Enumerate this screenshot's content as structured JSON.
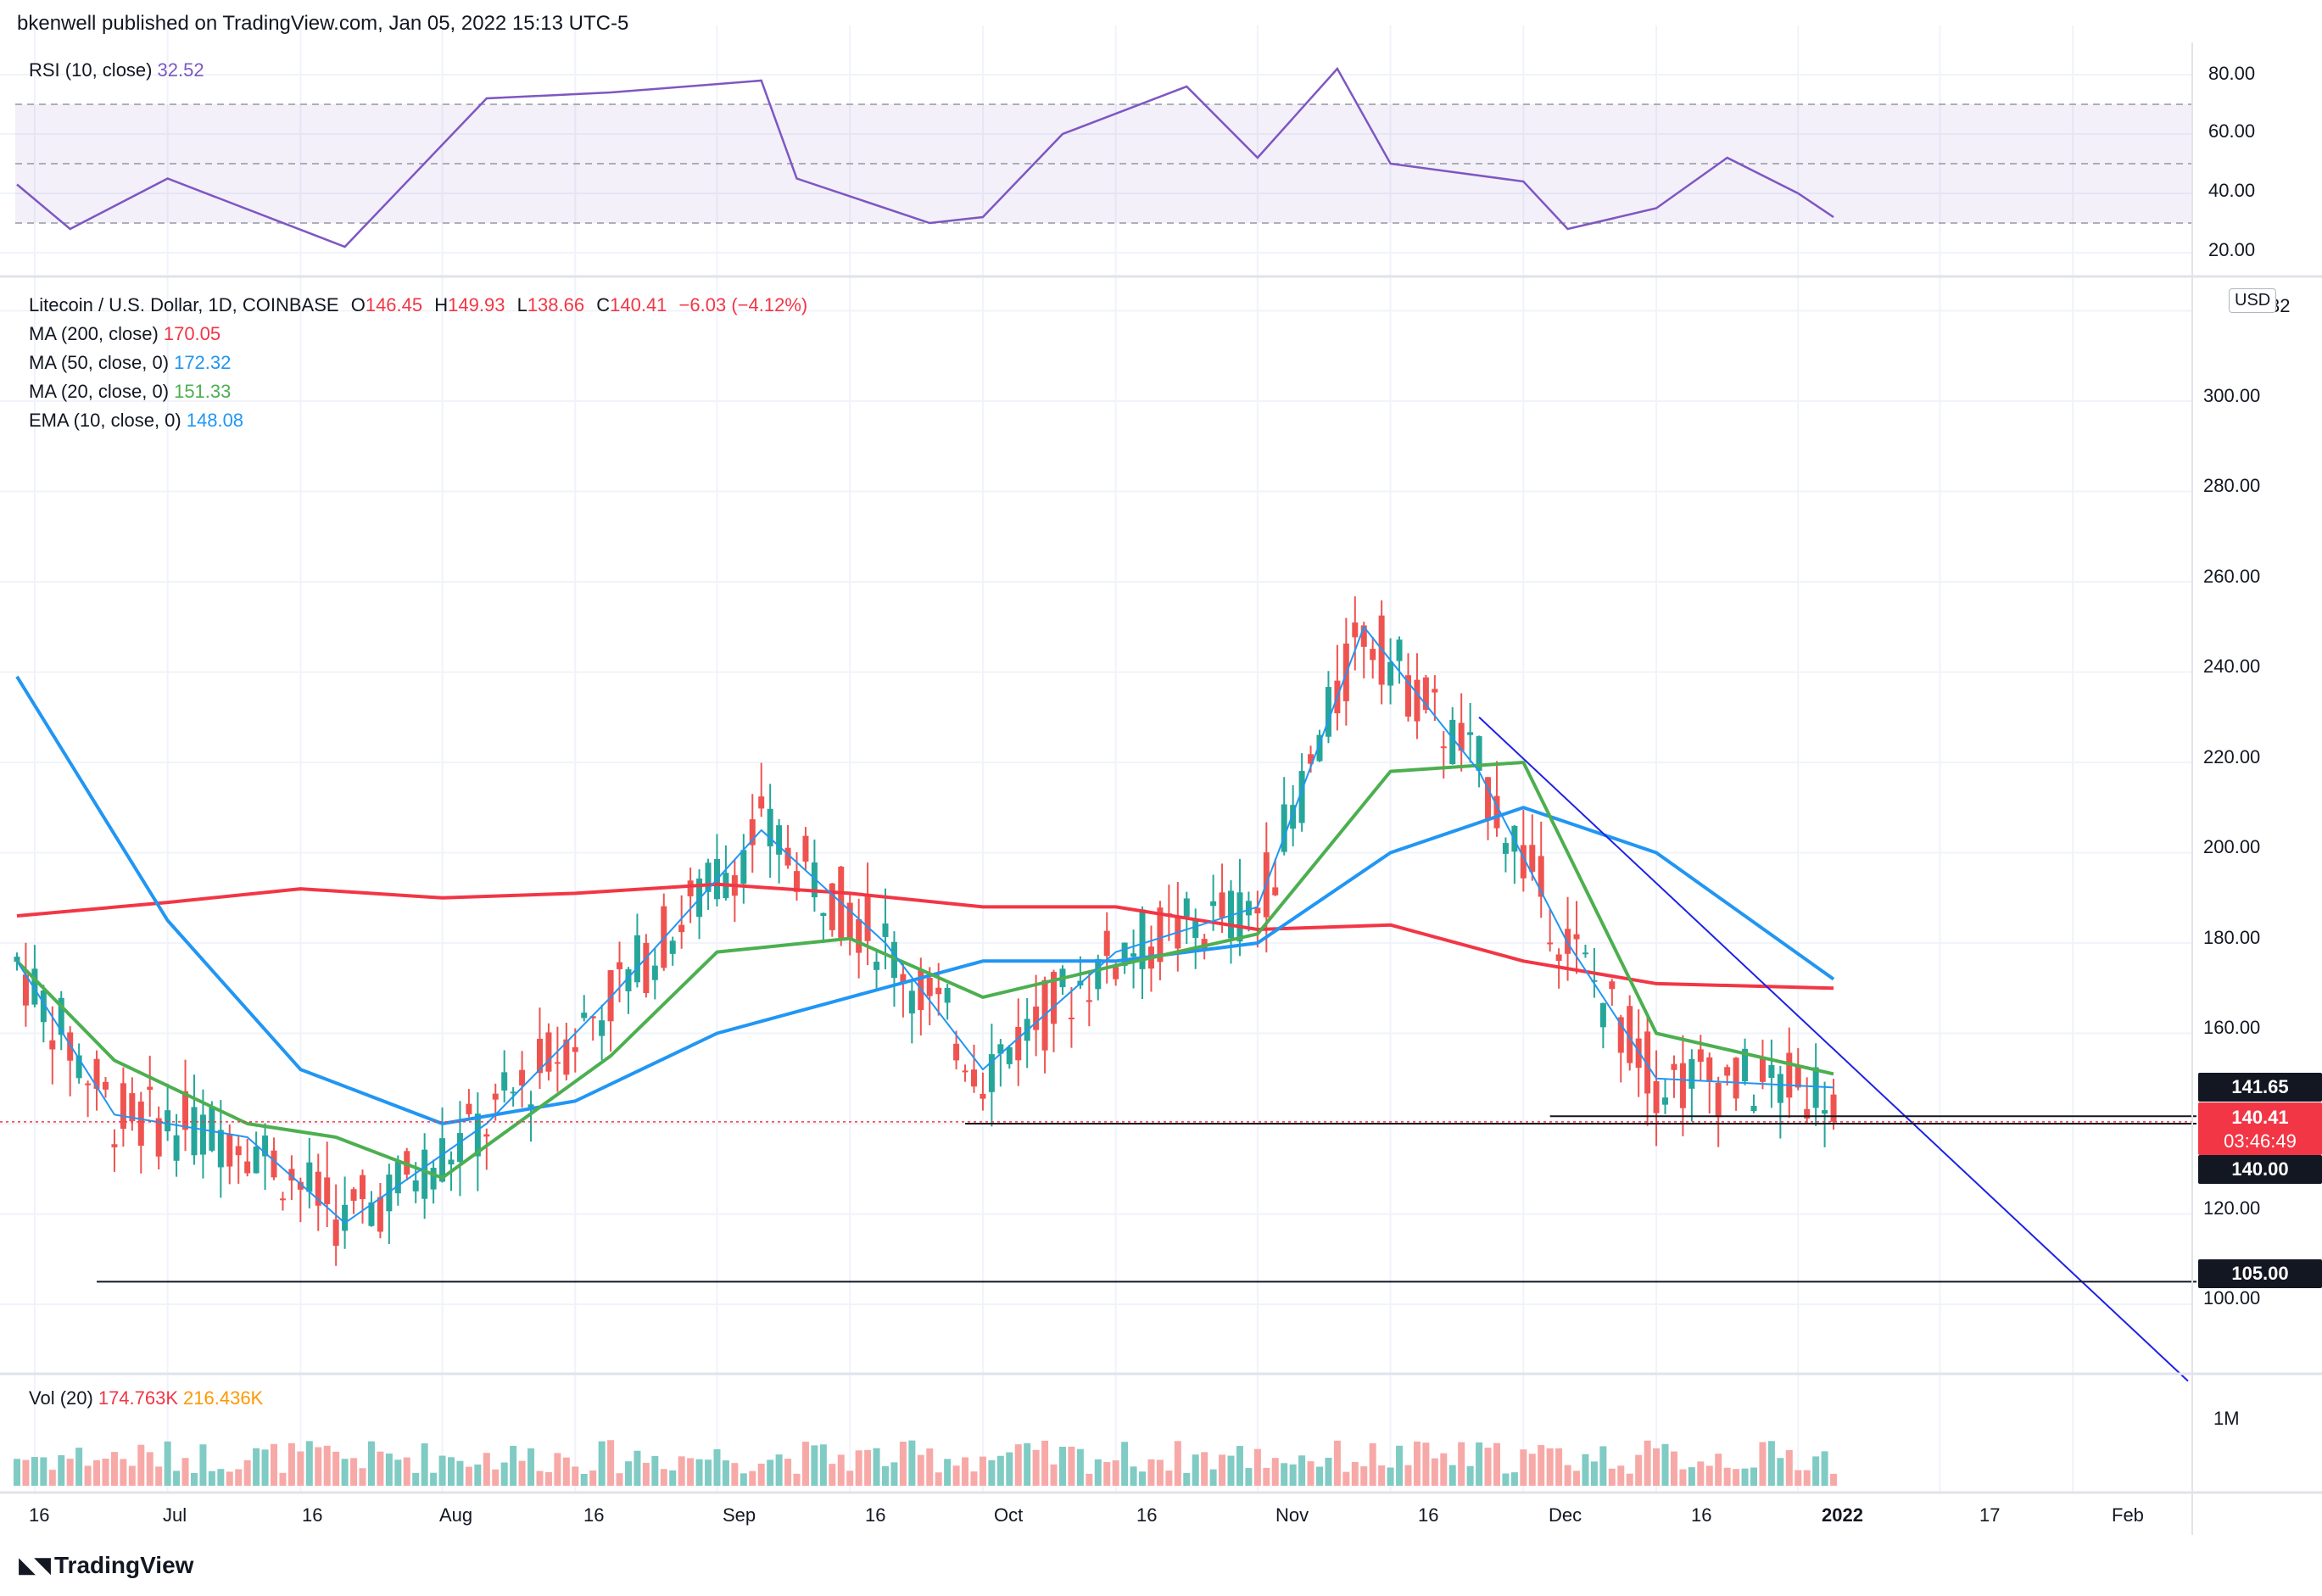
{
  "header": {
    "publisher_text": "bkenwell published on TradingView.com, Jan 05, 2022 15:13 UTC-5"
  },
  "footer": {
    "brand": "TradingView"
  },
  "rsi_pane": {
    "label": "RSI (10, close)",
    "value": "32.52",
    "color": "#7e57c2",
    "levels": [
      "80.00",
      "60.00",
      "40.00",
      "20.00"
    ]
  },
  "main_pane": {
    "symbol": "Litecoin / U.S. Dollar, 1D, COINBASE",
    "ohlc": {
      "o_label": "O",
      "o": "146.45",
      "h_label": "H",
      "h": "149.93",
      "l_label": "L",
      "l": "138.66",
      "c_label": "C",
      "c": "140.41",
      "chg": "−6.03 (−4.12%)"
    },
    "indicators": [
      {
        "label": "MA (200, close)",
        "value": "170.05",
        "color": "#f23645"
      },
      {
        "label": "MA (50, close, 0)",
        "value": "172.32",
        "color": "#2196f3"
      },
      {
        "label": "MA (20, close, 0)",
        "value": "151.33",
        "color": "#4caf50"
      },
      {
        "label": "EMA (10, close, 0)",
        "value": "148.08",
        "color": "#2196f3"
      }
    ],
    "currency": "USD",
    "price_axis": [
      "300.00",
      "280.00",
      "260.00",
      "240.00",
      "220.00",
      "200.00",
      "180.00",
      "160.00",
      "120.00",
      "100.00"
    ],
    "axis_top_cut": "32",
    "tags": [
      {
        "value": "141.65",
        "color": "#131722"
      },
      {
        "value": "140.41",
        "extra": "03:46:49",
        "color": "#f23645"
      },
      {
        "value": "140.00",
        "color": "#131722"
      },
      {
        "value": "105.00",
        "color": "#131722"
      }
    ]
  },
  "volume_pane": {
    "label": "Vol (20)",
    "value1": "174.763K",
    "value2": "216.436K",
    "axis": "1M"
  },
  "time_axis": [
    "16",
    "Jul",
    "16",
    "Aug",
    "16",
    "Sep",
    "16",
    "Oct",
    "16",
    "Nov",
    "16",
    "Dec",
    "16",
    "2022",
    "17",
    "Feb"
  ],
  "chart_data": {
    "type": "candlestick",
    "title": "Litecoin / U.S. Dollar, 1D, COINBASE",
    "x_range": [
      "2021-06-14",
      "2022-02-14"
    ],
    "ylim": [
      80,
      320
    ],
    "grid": true,
    "last": {
      "open": 146.45,
      "high": 149.93,
      "low": 138.66,
      "close": 140.41
    },
    "horizontal_levels": [
      105.0,
      140.0,
      141.65
    ],
    "trendline": {
      "from": [
        "2021-11-26",
        230
      ],
      "to": [
        "2022-02-14",
        83
      ]
    },
    "ma200": [
      [
        "2021-06-14",
        186
      ],
      [
        "2021-07-01",
        189
      ],
      [
        "2021-07-16",
        192
      ],
      [
        "2021-08-01",
        190
      ],
      [
        "2021-08-16",
        191
      ],
      [
        "2021-09-01",
        193
      ],
      [
        "2021-09-16",
        191
      ],
      [
        "2021-10-01",
        188
      ],
      [
        "2021-10-16",
        188
      ],
      [
        "2021-11-01",
        183
      ],
      [
        "2021-11-16",
        184
      ],
      [
        "2021-12-01",
        176
      ],
      [
        "2021-12-16",
        171
      ],
      [
        "2022-01-05",
        170
      ]
    ],
    "ma50": [
      [
        "2021-06-14",
        239
      ],
      [
        "2021-07-01",
        185
      ],
      [
        "2021-07-16",
        152
      ],
      [
        "2021-08-01",
        140
      ],
      [
        "2021-08-16",
        145
      ],
      [
        "2021-09-01",
        160
      ],
      [
        "2021-09-16",
        168
      ],
      [
        "2021-10-01",
        176
      ],
      [
        "2021-10-16",
        176
      ],
      [
        "2021-11-01",
        180
      ],
      [
        "2021-11-16",
        200
      ],
      [
        "2021-12-01",
        210
      ],
      [
        "2021-12-16",
        200
      ],
      [
        "2022-01-05",
        172
      ]
    ],
    "ma20": [
      [
        "2021-06-14",
        176
      ],
      [
        "2021-06-25",
        154
      ],
      [
        "2021-07-10",
        140
      ],
      [
        "2021-07-20",
        137
      ],
      [
        "2021-08-01",
        128
      ],
      [
        "2021-08-20",
        155
      ],
      [
        "2021-09-01",
        178
      ],
      [
        "2021-09-16",
        181
      ],
      [
        "2021-10-01",
        168
      ],
      [
        "2021-10-16",
        175
      ],
      [
        "2021-11-01",
        182
      ],
      [
        "2021-11-16",
        218
      ],
      [
        "2021-12-01",
        220
      ],
      [
        "2021-12-16",
        160
      ],
      [
        "2022-01-05",
        151
      ]
    ],
    "ema10": [
      [
        "2021-06-14",
        176
      ],
      [
        "2021-06-25",
        142
      ],
      [
        "2021-07-10",
        137
      ],
      [
        "2021-07-21",
        118
      ],
      [
        "2021-08-06",
        140
      ],
      [
        "2021-08-20",
        168
      ],
      [
        "2021-09-06",
        205
      ],
      [
        "2021-09-20",
        180
      ],
      [
        "2021-10-01",
        152
      ],
      [
        "2021-10-16",
        178
      ],
      [
        "2021-11-01",
        188
      ],
      [
        "2021-11-13",
        250
      ],
      [
        "2021-11-26",
        218
      ],
      [
        "2021-12-06",
        180
      ],
      [
        "2021-12-16",
        150
      ],
      [
        "2022-01-05",
        148
      ]
    ],
    "rsi": [
      [
        "2021-06-14",
        43
      ],
      [
        "2021-06-20",
        28
      ],
      [
        "2021-07-01",
        45
      ],
      [
        "2021-07-21",
        22
      ],
      [
        "2021-08-06",
        72
      ],
      [
        "2021-08-20",
        74
      ],
      [
        "2021-09-06",
        78
      ],
      [
        "2021-09-10",
        45
      ],
      [
        "2021-09-25",
        30
      ],
      [
        "2021-10-01",
        32
      ],
      [
        "2021-10-10",
        60
      ],
      [
        "2021-10-24",
        76
      ],
      [
        "2021-11-01",
        52
      ],
      [
        "2021-11-10",
        82
      ],
      [
        "2021-11-16",
        50
      ],
      [
        "2021-12-01",
        44
      ],
      [
        "2021-12-06",
        28
      ],
      [
        "2021-12-16",
        35
      ],
      [
        "2021-12-24",
        52
      ],
      [
        "2022-01-01",
        40
      ],
      [
        "2022-01-05",
        32
      ]
    ]
  }
}
